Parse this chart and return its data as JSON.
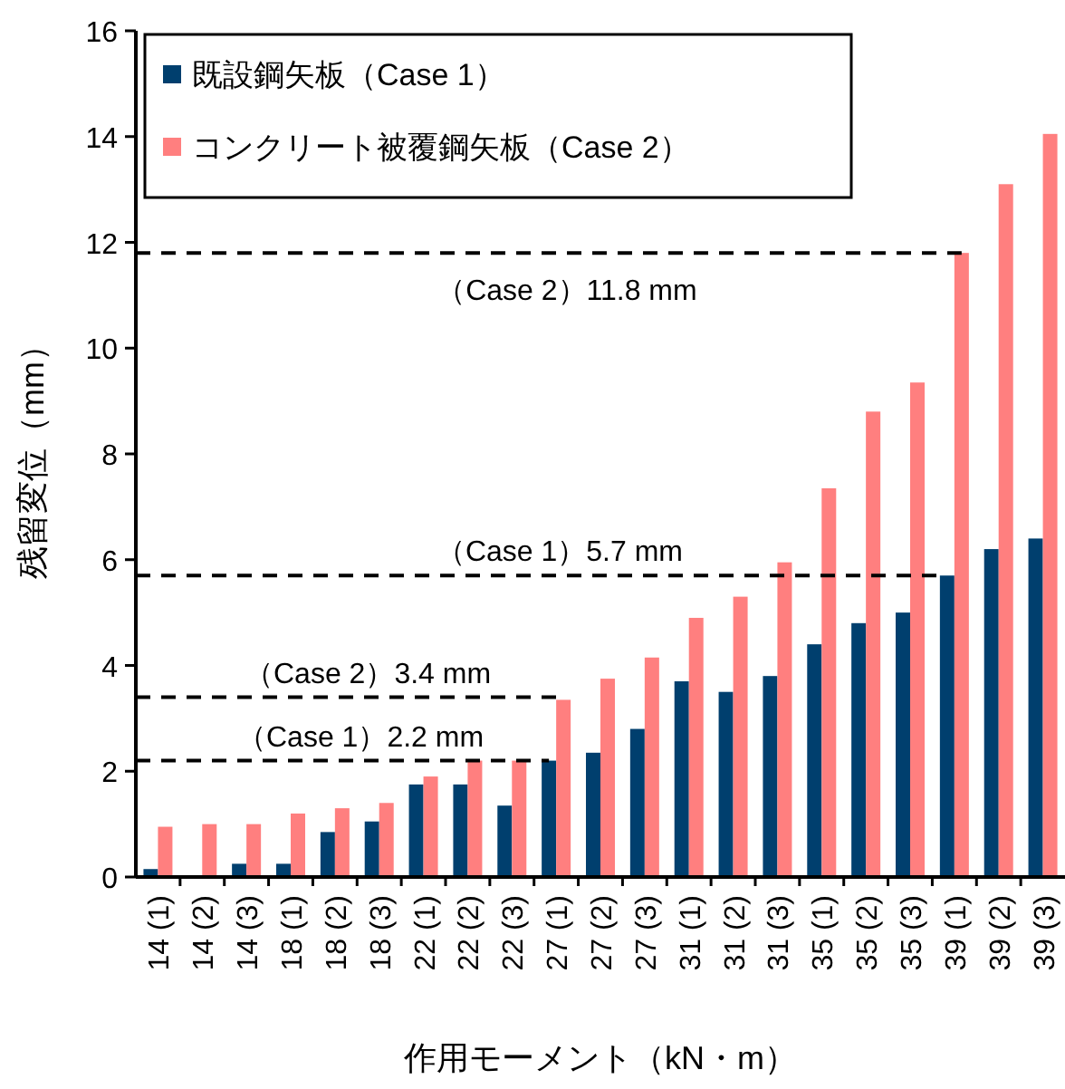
{
  "chart_data": {
    "type": "bar",
    "xlabel": "作用モーメント（kN・m）",
    "ylabel": "残留変位（mm）",
    "categories": [
      "14 (1)",
      "14 (2)",
      "14 (3)",
      "18 (1)",
      "18 (2)",
      "18 (3)",
      "22 (1)",
      "22 (2)",
      "22 (3)",
      "27 (1)",
      "27 (2)",
      "27 (3)",
      "31 (1)",
      "31 (2)",
      "31 (3)",
      "35 (1)",
      "35 (2)",
      "35 (3)",
      "39 (1)",
      "39 (2)",
      "39 (3)"
    ],
    "series": [
      {
        "name": "既設鋼矢板（Case 1）",
        "color": "#003f6e",
        "values": [
          0.15,
          0,
          0.25,
          0.25,
          0.85,
          1.05,
          1.75,
          1.75,
          1.35,
          2.2,
          2.35,
          2.8,
          3.7,
          3.5,
          3.8,
          4.4,
          4.8,
          5.0,
          5.7,
          6.2,
          6.4
        ]
      },
      {
        "name": "コンクリート被覆鋼矢板（Case 2）",
        "color": "#ff7f7f",
        "values": [
          0.95,
          1.0,
          1.0,
          1.2,
          1.3,
          1.4,
          1.9,
          2.2,
          2.2,
          3.35,
          3.75,
          4.15,
          4.9,
          5.3,
          5.95,
          7.35,
          8.8,
          9.35,
          11.8,
          13.1,
          14.05
        ]
      }
    ],
    "ylim": [
      0,
      16
    ],
    "yticks": [
      0,
      2,
      4,
      6,
      8,
      10,
      12,
      14,
      16
    ],
    "legend": "top left",
    "ref_lines": [
      {
        "axis": "y",
        "value": 11.8,
        "label": "（Case 2）11.8 mm",
        "line_style": "dashed"
      },
      {
        "axis": "y",
        "value": 5.7,
        "label": "（Case 1）5.7 mm",
        "line_style": "dashed"
      },
      {
        "axis": "y",
        "value": 3.4,
        "label": "（Case 2）3.4 mm",
        "line_style": "dashed"
      },
      {
        "axis": "y",
        "value": 2.2,
        "label": "（Case 1）2.2 mm",
        "line_style": "dashed"
      }
    ]
  }
}
